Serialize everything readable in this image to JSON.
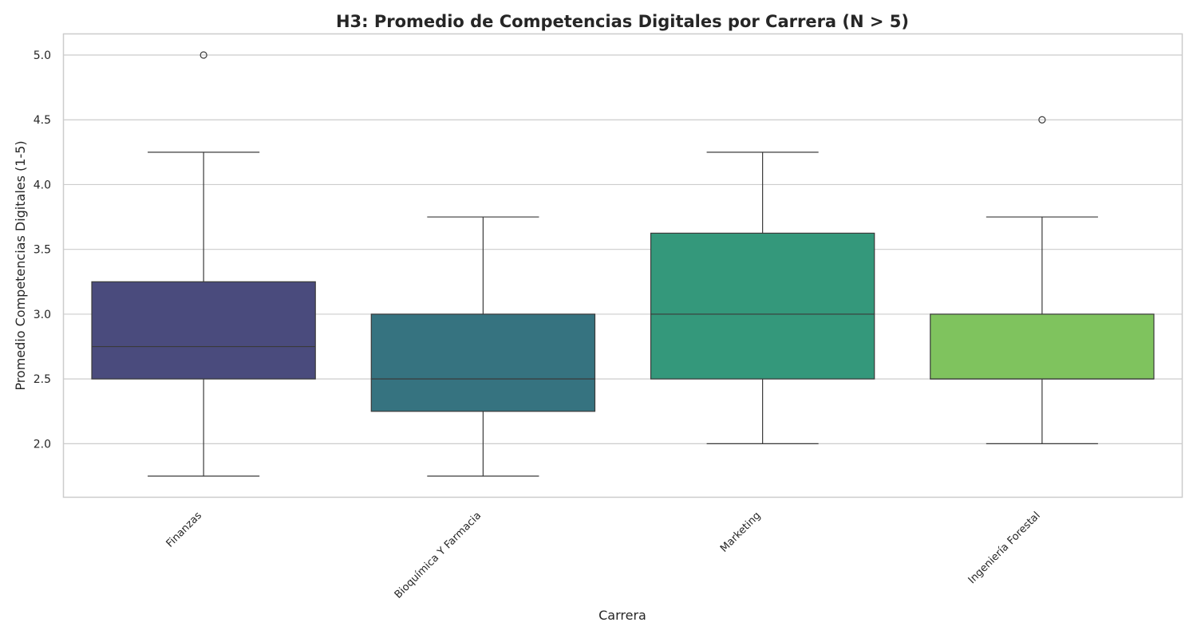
{
  "chart_data": {
    "type": "box",
    "title": "H3: Promedio de Competencias Digitales por Carrera (N > 5)",
    "xlabel": "Carrera",
    "ylabel": "Promedio Competencias Digitales (1-5)",
    "ylim": [
      1.59,
      5.16
    ],
    "yticks": [
      "2.0",
      "2.5",
      "3.0",
      "3.5",
      "4.0",
      "4.5",
      "5.0"
    ],
    "grid": true,
    "categories": [
      "Finanzas",
      "Bioquímica Y Farmacia",
      "Marketing",
      "Ingeniería Forestal"
    ],
    "boxes": [
      {
        "category": "Finanzas",
        "whisker_low": 1.75,
        "q1": 2.5,
        "median": 2.75,
        "q3": 3.25,
        "whisker_high": 4.25,
        "outliers": [
          5.0
        ],
        "color": "#4a4b7d"
      },
      {
        "category": "Bioquímica Y Farmacia",
        "whisker_low": 1.75,
        "q1": 2.25,
        "median": 2.5,
        "q3": 3.0,
        "whisker_high": 3.75,
        "outliers": [],
        "color": "#367380"
      },
      {
        "category": "Marketing",
        "whisker_low": 2.0,
        "q1": 2.5,
        "median": 3.0,
        "q3": 3.625,
        "whisker_high": 4.25,
        "outliers": [],
        "color": "#34987b"
      },
      {
        "category": "Ingeniería Forestal",
        "whisker_low": 2.0,
        "q1": 2.5,
        "median": 2.5,
        "q3": 3.0,
        "whisker_high": 3.75,
        "outliers": [
          4.5
        ],
        "color": "#7fc35e"
      }
    ]
  }
}
